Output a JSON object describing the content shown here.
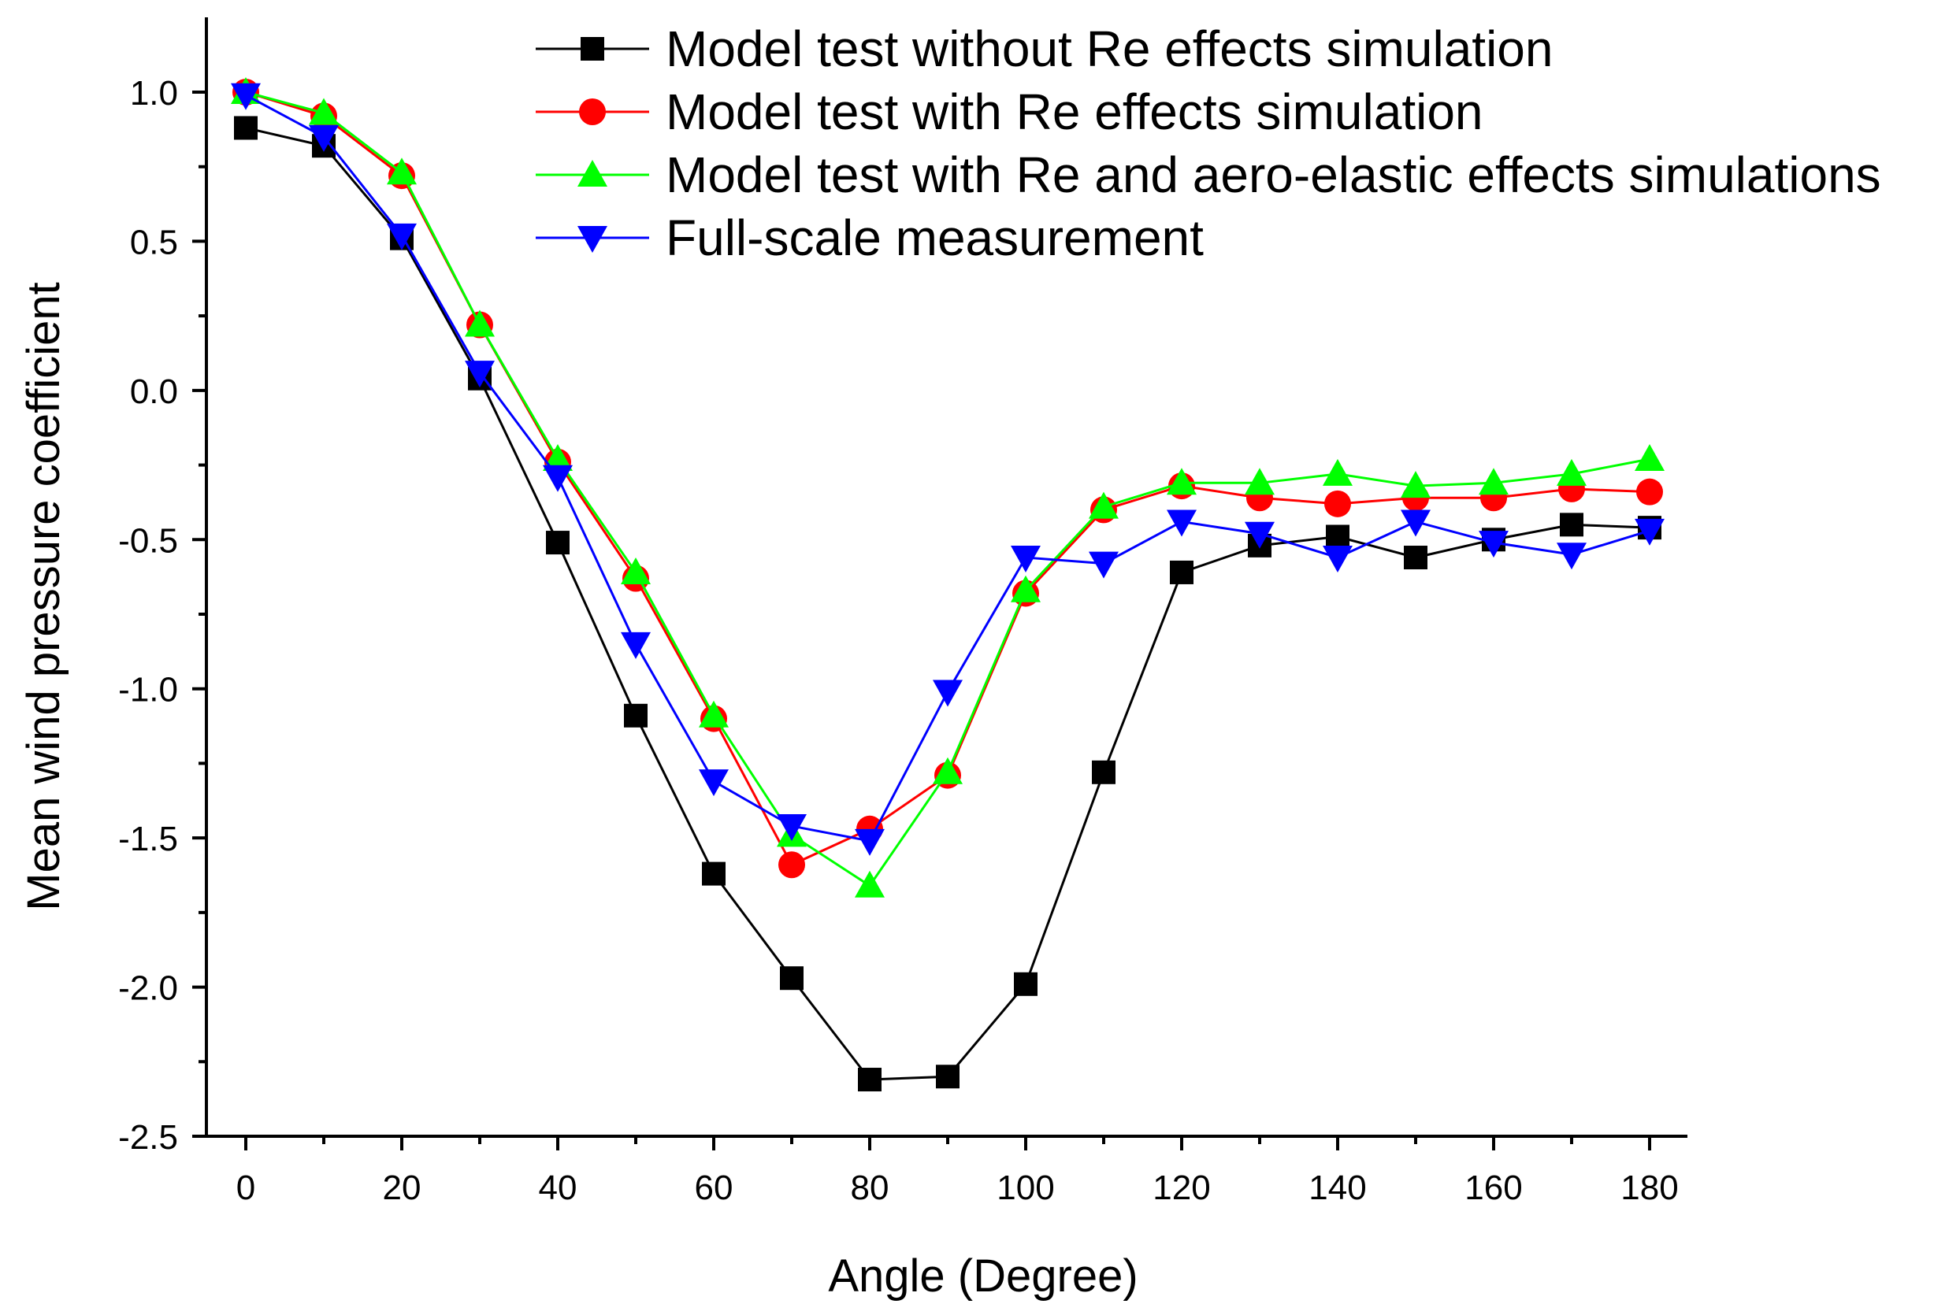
{
  "chart_data": {
    "type": "line",
    "title": "",
    "xlabel": "Angle (Degree)",
    "ylabel": "Mean wind pressure coefficient",
    "xlim": [
      -5,
      185
    ],
    "ylim": [
      -2.5,
      1.2
    ],
    "x_ticks": [
      0,
      20,
      40,
      60,
      80,
      100,
      120,
      140,
      160,
      180
    ],
    "x_tick_labels": [
      "0",
      "20",
      "40",
      "60",
      "80",
      "100",
      "120",
      "140",
      "160",
      "180"
    ],
    "y_ticks": [
      1.0,
      0.5,
      0.0,
      -0.5,
      -1.0,
      -1.5,
      -2.0,
      -2.5
    ],
    "y_tick_labels": [
      "1.0",
      "0.5",
      "0.0",
      "-0.5",
      "-1.0",
      "-1.5",
      "-2.0",
      "-2.5"
    ],
    "grid": false,
    "legend_position": "top-right",
    "x": [
      0,
      10,
      20,
      30,
      40,
      50,
      60,
      70,
      80,
      90,
      100,
      110,
      120,
      130,
      140,
      150,
      160,
      170,
      180
    ],
    "series": [
      {
        "name": "Model test without Re effects simulation",
        "color": "#000000",
        "marker": "square",
        "values": [
          0.88,
          0.82,
          0.51,
          0.04,
          -0.51,
          -1.09,
          -1.62,
          -1.97,
          -2.31,
          -2.3,
          -1.99,
          -1.28,
          -0.61,
          -0.52,
          -0.49,
          -0.56,
          -0.5,
          -0.45,
          -0.46
        ]
      },
      {
        "name": "Model test with Re effects simulation",
        "color": "#ff0000",
        "marker": "circle",
        "values": [
          1.0,
          0.92,
          0.72,
          0.22,
          -0.24,
          -0.63,
          -1.1,
          -1.59,
          -1.47,
          -1.29,
          -0.68,
          -0.4,
          -0.32,
          -0.36,
          -0.38,
          -0.36,
          -0.36,
          -0.33,
          -0.34
        ]
      },
      {
        "name": "Model test with Re and aero-elastic effects simulations",
        "color": "#00ff00",
        "marker": "triangle-up",
        "values": [
          1.0,
          0.93,
          0.73,
          0.22,
          -0.23,
          -0.61,
          -1.09,
          -1.49,
          -1.66,
          -1.28,
          -0.67,
          -0.39,
          -0.31,
          -0.31,
          -0.28,
          -0.32,
          -0.31,
          -0.28,
          -0.23
        ]
      },
      {
        "name": "Full-scale measurement",
        "color": "#0000ff",
        "marker": "triangle-down",
        "values": [
          0.99,
          0.85,
          0.52,
          0.06,
          -0.29,
          -0.85,
          -1.31,
          -1.46,
          -1.51,
          -1.01,
          -0.56,
          -0.58,
          -0.44,
          -0.48,
          -0.56,
          -0.44,
          -0.51,
          -0.55,
          -0.47
        ]
      }
    ]
  }
}
